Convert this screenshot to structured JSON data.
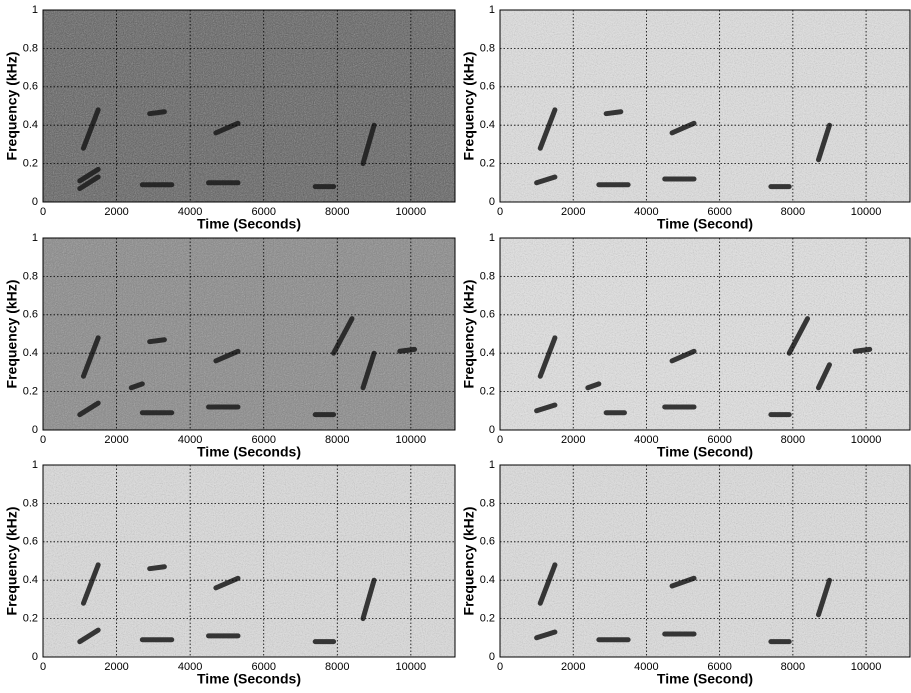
{
  "chart_data": [
    {
      "type": "spectrogram",
      "xlabel": "Time (Seconds)",
      "ylabel": "Frequency (kHz)",
      "background": "#5c5c5c",
      "stroke_color": "#1a1a1a",
      "grid": true,
      "xlim": [
        0,
        11200
      ],
      "ylim": [
        0,
        1
      ],
      "xticks": [
        0,
        2000,
        4000,
        6000,
        8000,
        10000
      ],
      "yticks": [
        0,
        0.2,
        0.4,
        0.6,
        0.8,
        1
      ],
      "strokes": [
        {
          "x": [
            1000,
            1500
          ],
          "y": [
            0.07,
            0.13
          ]
        },
        {
          "x": [
            1000,
            1500
          ],
          "y": [
            0.11,
            0.17
          ]
        },
        {
          "x": [
            1100,
            1500
          ],
          "y": [
            0.28,
            0.48
          ]
        },
        {
          "x": [
            2700,
            3500
          ],
          "y": [
            0.09,
            0.09
          ]
        },
        {
          "x": [
            2900,
            3300
          ],
          "y": [
            0.46,
            0.47
          ]
        },
        {
          "x": [
            4500,
            5300
          ],
          "y": [
            0.1,
            0.1
          ]
        },
        {
          "x": [
            4700,
            5300
          ],
          "y": [
            0.36,
            0.41
          ]
        },
        {
          "x": [
            7400,
            7900
          ],
          "y": [
            0.08,
            0.08
          ]
        },
        {
          "x": [
            8700,
            9000
          ],
          "y": [
            0.2,
            0.4
          ]
        }
      ]
    },
    {
      "type": "spectrogram",
      "xlabel": "Time (Second)",
      "ylabel": "Frequency (kHz)",
      "background": "#e2e2e2",
      "stroke_color": "#1a1a1a",
      "grid": true,
      "xlim": [
        0,
        11200
      ],
      "ylim": [
        0,
        1
      ],
      "xticks": [
        0,
        2000,
        4000,
        6000,
        8000,
        10000
      ],
      "yticks": [
        0,
        0.2,
        0.4,
        0.6,
        0.8,
        1
      ],
      "strokes": [
        {
          "x": [
            1000,
            1500
          ],
          "y": [
            0.1,
            0.13
          ]
        },
        {
          "x": [
            1100,
            1500
          ],
          "y": [
            0.28,
            0.48
          ]
        },
        {
          "x": [
            2700,
            3500
          ],
          "y": [
            0.09,
            0.09
          ]
        },
        {
          "x": [
            2900,
            3300
          ],
          "y": [
            0.46,
            0.47
          ]
        },
        {
          "x": [
            4500,
            5300
          ],
          "y": [
            0.12,
            0.12
          ]
        },
        {
          "x": [
            4700,
            5300
          ],
          "y": [
            0.36,
            0.41
          ]
        },
        {
          "x": [
            7400,
            7900
          ],
          "y": [
            0.08,
            0.08
          ]
        },
        {
          "x": [
            8700,
            9000
          ],
          "y": [
            0.22,
            0.4
          ]
        }
      ]
    },
    {
      "type": "spectrogram",
      "xlabel": "Time (Seconds)",
      "ylabel": "Frequency (kHz)",
      "background": "#858585",
      "stroke_color": "#1a1a1a",
      "grid": true,
      "xlim": [
        0,
        11200
      ],
      "ylim": [
        0,
        1
      ],
      "xticks": [
        0,
        2000,
        4000,
        6000,
        8000,
        10000
      ],
      "yticks": [
        0,
        0.2,
        0.4,
        0.6,
        0.8,
        1
      ],
      "strokes": [
        {
          "x": [
            1000,
            1500
          ],
          "y": [
            0.08,
            0.14
          ]
        },
        {
          "x": [
            1100,
            1500
          ],
          "y": [
            0.28,
            0.48
          ]
        },
        {
          "x": [
            2400,
            2700
          ],
          "y": [
            0.22,
            0.24
          ]
        },
        {
          "x": [
            2700,
            3500
          ],
          "y": [
            0.09,
            0.09
          ]
        },
        {
          "x": [
            2900,
            3300
          ],
          "y": [
            0.46,
            0.47
          ]
        },
        {
          "x": [
            4500,
            5300
          ],
          "y": [
            0.12,
            0.12
          ]
        },
        {
          "x": [
            4700,
            5300
          ],
          "y": [
            0.36,
            0.41
          ]
        },
        {
          "x": [
            7400,
            7900
          ],
          "y": [
            0.08,
            0.08
          ]
        },
        {
          "x": [
            7900,
            8400
          ],
          "y": [
            0.4,
            0.58
          ]
        },
        {
          "x": [
            8700,
            9000
          ],
          "y": [
            0.22,
            0.4
          ]
        },
        {
          "x": [
            9700,
            10100
          ],
          "y": [
            0.41,
            0.42
          ]
        }
      ]
    },
    {
      "type": "spectrogram",
      "xlabel": "Time (Second)",
      "ylabel": "Frequency (kHz)",
      "background": "#e4e4e4",
      "stroke_color": "#1a1a1a",
      "grid": true,
      "xlim": [
        0,
        11200
      ],
      "ylim": [
        0,
        1
      ],
      "xticks": [
        0,
        2000,
        4000,
        6000,
        8000,
        10000
      ],
      "yticks": [
        0,
        0.2,
        0.4,
        0.6,
        0.8,
        1
      ],
      "strokes": [
        {
          "x": [
            1000,
            1500
          ],
          "y": [
            0.1,
            0.13
          ]
        },
        {
          "x": [
            1100,
            1500
          ],
          "y": [
            0.28,
            0.48
          ]
        },
        {
          "x": [
            2400,
            2700
          ],
          "y": [
            0.22,
            0.24
          ]
        },
        {
          "x": [
            2900,
            3400
          ],
          "y": [
            0.09,
            0.09
          ]
        },
        {
          "x": [
            4500,
            5300
          ],
          "y": [
            0.12,
            0.12
          ]
        },
        {
          "x": [
            4700,
            5300
          ],
          "y": [
            0.36,
            0.41
          ]
        },
        {
          "x": [
            7400,
            7900
          ],
          "y": [
            0.08,
            0.08
          ]
        },
        {
          "x": [
            7900,
            8400
          ],
          "y": [
            0.4,
            0.58
          ]
        },
        {
          "x": [
            8700,
            9000
          ],
          "y": [
            0.22,
            0.34
          ]
        },
        {
          "x": [
            9700,
            10100
          ],
          "y": [
            0.41,
            0.42
          ]
        }
      ]
    },
    {
      "type": "spectrogram",
      "xlabel": "Time (Seconds)",
      "ylabel": "Frequency (kHz)",
      "background": "#dedede",
      "stroke_color": "#1a1a1a",
      "grid": true,
      "xlim": [
        0,
        11200
      ],
      "ylim": [
        0,
        1
      ],
      "xticks": [
        0,
        2000,
        4000,
        6000,
        8000,
        10000
      ],
      "yticks": [
        0,
        0.2,
        0.4,
        0.6,
        0.8,
        1
      ],
      "strokes": [
        {
          "x": [
            1000,
            1500
          ],
          "y": [
            0.08,
            0.14
          ]
        },
        {
          "x": [
            1100,
            1500
          ],
          "y": [
            0.28,
            0.48
          ]
        },
        {
          "x": [
            2700,
            3500
          ],
          "y": [
            0.09,
            0.09
          ]
        },
        {
          "x": [
            2900,
            3300
          ],
          "y": [
            0.46,
            0.47
          ]
        },
        {
          "x": [
            4500,
            5300
          ],
          "y": [
            0.11,
            0.11
          ]
        },
        {
          "x": [
            4700,
            5300
          ],
          "y": [
            0.36,
            0.41
          ]
        },
        {
          "x": [
            7400,
            7900
          ],
          "y": [
            0.08,
            0.08
          ]
        },
        {
          "x": [
            8700,
            9000
          ],
          "y": [
            0.2,
            0.4
          ]
        }
      ]
    },
    {
      "type": "spectrogram",
      "xlabel": "Time (Second)",
      "ylabel": "Frequency (kHz)",
      "background": "#e0e0e0",
      "stroke_color": "#1a1a1a",
      "grid": true,
      "xlim": [
        0,
        11200
      ],
      "ylim": [
        0,
        1
      ],
      "xticks": [
        0,
        2000,
        4000,
        6000,
        8000,
        10000
      ],
      "yticks": [
        0,
        0.2,
        0.4,
        0.6,
        0.8,
        1
      ],
      "strokes": [
        {
          "x": [
            1000,
            1500
          ],
          "y": [
            0.1,
            0.13
          ]
        },
        {
          "x": [
            1100,
            1500
          ],
          "y": [
            0.28,
            0.48
          ]
        },
        {
          "x": [
            2700,
            3500
          ],
          "y": [
            0.09,
            0.09
          ]
        },
        {
          "x": [
            4500,
            5300
          ],
          "y": [
            0.12,
            0.12
          ]
        },
        {
          "x": [
            4700,
            5300
          ],
          "y": [
            0.37,
            0.41
          ]
        },
        {
          "x": [
            7400,
            7900
          ],
          "y": [
            0.08,
            0.08
          ]
        },
        {
          "x": [
            8700,
            9000
          ],
          "y": [
            0.22,
            0.4
          ]
        }
      ]
    }
  ]
}
